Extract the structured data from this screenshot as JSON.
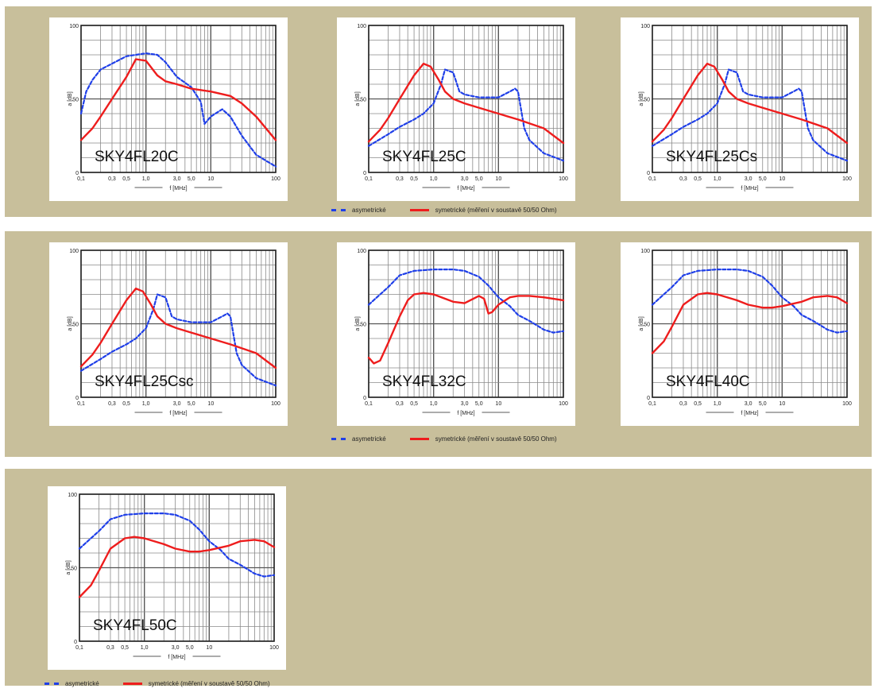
{
  "legend": {
    "asym": "asymetrické",
    "sym": "symetrické (měření v soustavě 50/50 Ohm)"
  },
  "axes": {
    "ylabel": "a [dB]",
    "xlabel": "f [MHz]",
    "yticks": [
      "0",
      "50",
      "100"
    ],
    "xticks": [
      "0,1",
      "0,3",
      "0,5",
      "1,0",
      "3,0",
      "5,0",
      "10",
      "100"
    ]
  },
  "colors": {
    "asym": "#1f3fe8",
    "sym": "#ee1d1d",
    "panel": "#c8bf9b"
  },
  "chart_data": [
    {
      "type": "line",
      "title": "SKY4FL20C",
      "xscale": "log",
      "xlim": [
        0.1,
        100
      ],
      "ylim": [
        0,
        100
      ],
      "grid": true,
      "series": [
        {
          "name": "asymetrické",
          "style": "dashed",
          "color": "#1f3fe8",
          "x": [
            0.1,
            0.12,
            0.15,
            0.2,
            0.3,
            0.5,
            0.7,
            1,
            1.5,
            2,
            3,
            5,
            7,
            8,
            10,
            15,
            20,
            30,
            50,
            100
          ],
          "y": [
            40,
            55,
            63,
            70,
            74,
            79,
            80,
            81,
            80,
            75,
            65,
            58,
            48,
            33,
            38,
            43,
            38,
            25,
            12,
            4
          ]
        },
        {
          "name": "symetrické (měření v soustavě 50/50 Ohm)",
          "style": "solid",
          "color": "#ee1d1d",
          "x": [
            0.1,
            0.15,
            0.2,
            0.3,
            0.5,
            0.7,
            1,
            1.5,
            2,
            3,
            5,
            10,
            20,
            30,
            50,
            100
          ],
          "y": [
            22,
            30,
            38,
            50,
            65,
            77,
            76,
            66,
            62,
            60,
            57,
            55,
            52,
            47,
            38,
            22
          ]
        }
      ]
    },
    {
      "type": "line",
      "title": "SKY4FL25C",
      "xscale": "log",
      "xlim": [
        0.1,
        100
      ],
      "ylim": [
        0,
        100
      ],
      "grid": true,
      "series": [
        {
          "name": "asymetrické",
          "style": "dashed",
          "color": "#1f3fe8",
          "x": [
            0.1,
            0.2,
            0.3,
            0.5,
            0.7,
            1,
            1.3,
            1.5,
            2,
            2.5,
            3,
            5,
            10,
            15,
            18,
            20,
            25,
            30,
            50,
            100
          ],
          "y": [
            18,
            26,
            31,
            36,
            40,
            47,
            60,
            70,
            68,
            55,
            53,
            51,
            51,
            55,
            57,
            55,
            30,
            22,
            13,
            8
          ]
        },
        {
          "name": "symetrické (měření v soustavě 50/50 Ohm)",
          "style": "solid",
          "color": "#ee1d1d",
          "x": [
            0.1,
            0.15,
            0.2,
            0.3,
            0.5,
            0.7,
            0.9,
            1.2,
            1.5,
            2,
            3,
            5,
            10,
            20,
            50,
            100
          ],
          "y": [
            21,
            29,
            37,
            50,
            66,
            74,
            72,
            63,
            55,
            50,
            47,
            44,
            40,
            36,
            30,
            20
          ]
        }
      ]
    },
    {
      "type": "line",
      "title": "SKY4FL25Cs",
      "xscale": "log",
      "xlim": [
        0.1,
        100
      ],
      "ylim": [
        0,
        100
      ],
      "grid": true,
      "series": [
        {
          "name": "asymetrické",
          "style": "dashed",
          "color": "#1f3fe8",
          "x": [
            0.1,
            0.2,
            0.3,
            0.5,
            0.7,
            1,
            1.3,
            1.5,
            2,
            2.5,
            3,
            5,
            10,
            15,
            18,
            20,
            25,
            30,
            50,
            100
          ],
          "y": [
            18,
            26,
            31,
            36,
            40,
            47,
            60,
            70,
            68,
            55,
            53,
            51,
            51,
            55,
            57,
            55,
            30,
            22,
            13,
            8
          ]
        },
        {
          "name": "symetrické (měření v soustavě 50/50 Ohm)",
          "style": "solid",
          "color": "#ee1d1d",
          "x": [
            0.1,
            0.15,
            0.2,
            0.3,
            0.5,
            0.7,
            0.9,
            1.2,
            1.5,
            2,
            3,
            5,
            10,
            20,
            50,
            100
          ],
          "y": [
            21,
            29,
            37,
            50,
            66,
            74,
            72,
            63,
            55,
            50,
            47,
            44,
            40,
            36,
            30,
            20
          ]
        }
      ]
    },
    {
      "type": "line",
      "title": "SKY4FL25Csc",
      "xscale": "log",
      "xlim": [
        0.1,
        100
      ],
      "ylim": [
        0,
        100
      ],
      "grid": true,
      "series": [
        {
          "name": "asymetrické",
          "style": "dashed",
          "color": "#1f3fe8",
          "x": [
            0.1,
            0.2,
            0.3,
            0.5,
            0.7,
            1,
            1.3,
            1.5,
            2,
            2.5,
            3,
            5,
            10,
            15,
            18,
            20,
            25,
            30,
            50,
            100
          ],
          "y": [
            18,
            26,
            31,
            36,
            40,
            47,
            60,
            70,
            68,
            55,
            53,
            51,
            51,
            55,
            57,
            55,
            30,
            22,
            13,
            8
          ]
        },
        {
          "name": "symetrické (měření v soustavě 50/50 Ohm)",
          "style": "solid",
          "color": "#ee1d1d",
          "x": [
            0.1,
            0.15,
            0.2,
            0.3,
            0.5,
            0.7,
            0.9,
            1.2,
            1.5,
            2,
            3,
            5,
            10,
            20,
            50,
            100
          ],
          "y": [
            21,
            29,
            37,
            50,
            66,
            74,
            72,
            63,
            55,
            50,
            47,
            44,
            40,
            36,
            30,
            20
          ]
        }
      ]
    },
    {
      "type": "line",
      "title": "SKY4FL32C",
      "xscale": "log",
      "xlim": [
        0.1,
        100
      ],
      "ylim": [
        0,
        100
      ],
      "grid": true,
      "series": [
        {
          "name": "asymetrické",
          "style": "dashed",
          "color": "#1f3fe8",
          "x": [
            0.1,
            0.2,
            0.3,
            0.5,
            1,
            2,
            3,
            5,
            7,
            10,
            15,
            20,
            30,
            50,
            70,
            100
          ],
          "y": [
            63,
            75,
            83,
            86,
            87,
            87,
            86,
            82,
            76,
            68,
            62,
            56,
            52,
            46,
            44,
            45
          ]
        },
        {
          "name": "symetrické (měření v soustavě 50/50 Ohm)",
          "style": "solid",
          "color": "#ee1d1d",
          "x": [
            0.1,
            0.12,
            0.15,
            0.2,
            0.3,
            0.4,
            0.5,
            0.7,
            1,
            2,
            3,
            5,
            6,
            7,
            8,
            10,
            15,
            20,
            30,
            50,
            100
          ],
          "y": [
            27,
            23,
            25,
            37,
            55,
            66,
            70,
            71,
            70,
            65,
            64,
            69,
            67,
            57,
            58,
            63,
            68,
            69,
            69,
            68,
            66
          ]
        }
      ]
    },
    {
      "type": "line",
      "title": "SKY4FL40C",
      "xscale": "log",
      "xlim": [
        0.1,
        100
      ],
      "ylim": [
        0,
        100
      ],
      "grid": true,
      "series": [
        {
          "name": "asymetrické",
          "style": "dashed",
          "color": "#1f3fe8",
          "x": [
            0.1,
            0.2,
            0.3,
            0.5,
            1,
            2,
            3,
            5,
            7,
            10,
            15,
            20,
            30,
            50,
            70,
            100
          ],
          "y": [
            63,
            75,
            83,
            86,
            87,
            87,
            86,
            82,
            76,
            68,
            62,
            56,
            52,
            46,
            44,
            45
          ]
        },
        {
          "name": "symetrické (měření v soustavě 50/50 Ohm)",
          "style": "solid",
          "color": "#ee1d1d",
          "x": [
            0.1,
            0.15,
            0.2,
            0.3,
            0.5,
            0.7,
            1,
            2,
            3,
            5,
            7,
            10,
            20,
            30,
            50,
            70,
            100
          ],
          "y": [
            30,
            38,
            48,
            63,
            70,
            71,
            70,
            66,
            63,
            61,
            61,
            62,
            65,
            68,
            69,
            68,
            64
          ]
        }
      ]
    },
    {
      "type": "line",
      "title": "SKY4FL50C",
      "xscale": "log",
      "xlim": [
        0.1,
        100
      ],
      "ylim": [
        0,
        100
      ],
      "grid": true,
      "series": [
        {
          "name": "asymetrické",
          "style": "dashed",
          "color": "#1f3fe8",
          "x": [
            0.1,
            0.2,
            0.3,
            0.5,
            1,
            2,
            3,
            5,
            7,
            10,
            15,
            20,
            30,
            50,
            70,
            100
          ],
          "y": [
            63,
            75,
            83,
            86,
            87,
            87,
            86,
            82,
            76,
            68,
            62,
            56,
            52,
            46,
            44,
            45
          ]
        },
        {
          "name": "symetrické (měření v soustavě 50/50 Ohm)",
          "style": "solid",
          "color": "#ee1d1d",
          "x": [
            0.1,
            0.15,
            0.2,
            0.3,
            0.5,
            0.7,
            1,
            2,
            3,
            5,
            7,
            10,
            20,
            30,
            50,
            70,
            100
          ],
          "y": [
            30,
            38,
            48,
            63,
            70,
            71,
            70,
            66,
            63,
            61,
            61,
            62,
            65,
            68,
            69,
            68,
            64
          ]
        }
      ]
    }
  ]
}
